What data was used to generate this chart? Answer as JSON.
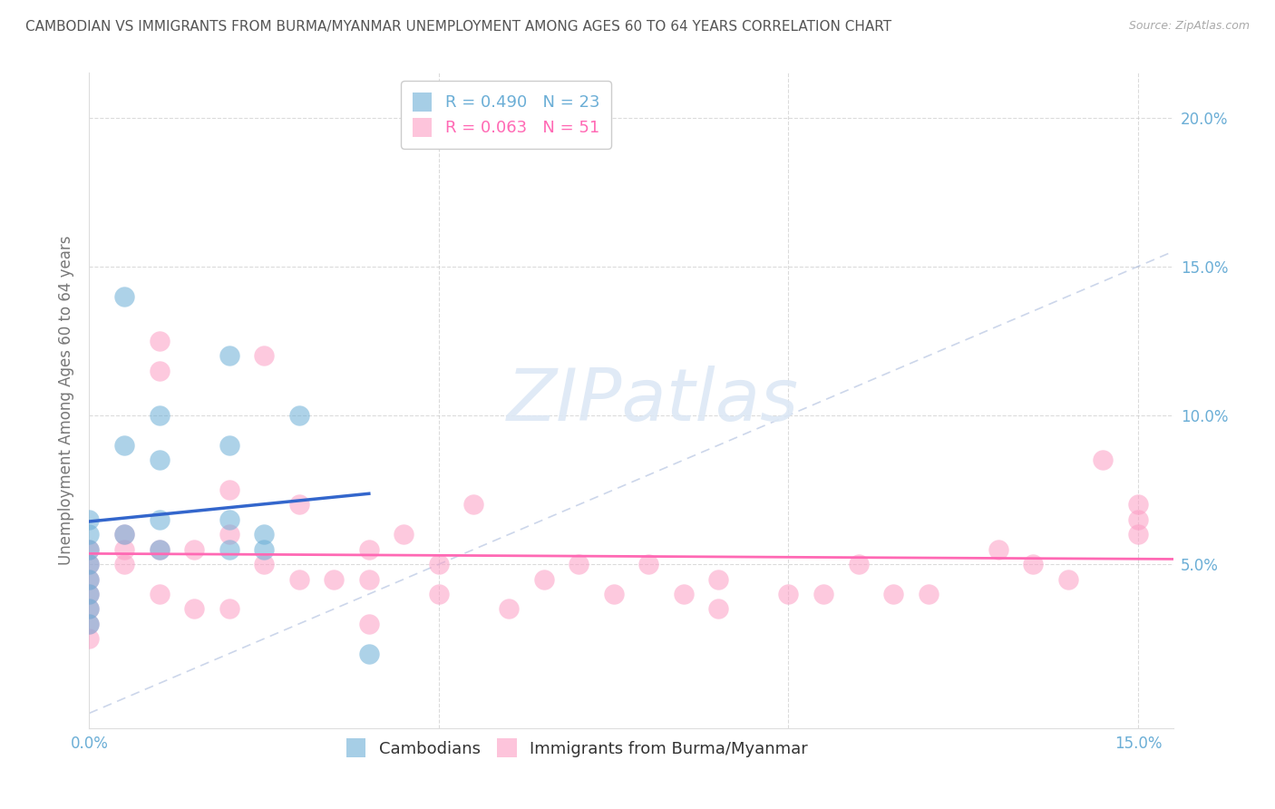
{
  "title": "CAMBODIAN VS IMMIGRANTS FROM BURMA/MYANMAR UNEMPLOYMENT AMONG AGES 60 TO 64 YEARS CORRELATION CHART",
  "source": "Source: ZipAtlas.com",
  "ylabel": "Unemployment Among Ages 60 to 64 years",
  "xlim": [
    0.0,
    0.155
  ],
  "ylim": [
    -0.005,
    0.215
  ],
  "x_ticks": [
    0.0,
    0.05,
    0.1,
    0.15
  ],
  "x_ticklabels": [
    "0.0%",
    "",
    "",
    "15.0%"
  ],
  "y_ticks": [
    0.05,
    0.1,
    0.15,
    0.2
  ],
  "y_ticklabels": [
    "5.0%",
    "10.0%",
    "15.0%",
    "20.0%"
  ],
  "cambodian_color": "#6BAED6",
  "burma_color": "#FC9DC4",
  "line_cambodian_color": "#3366CC",
  "line_burma_color": "#FF69B4",
  "cambodian_R": 0.49,
  "cambodian_N": 23,
  "burma_R": 0.063,
  "burma_N": 51,
  "legend_labels": [
    "Cambodians",
    "Immigrants from Burma/Myanmar"
  ],
  "watermark_text": "ZIPatlas",
  "cambodian_x": [
    0.0,
    0.0,
    0.0,
    0.0,
    0.0,
    0.0,
    0.0,
    0.0,
    0.005,
    0.005,
    0.005,
    0.01,
    0.01,
    0.01,
    0.01,
    0.02,
    0.02,
    0.02,
    0.02,
    0.025,
    0.025,
    0.03,
    0.04
  ],
  "cambodian_y": [
    0.055,
    0.06,
    0.065,
    0.05,
    0.045,
    0.04,
    0.035,
    0.03,
    0.06,
    0.09,
    0.14,
    0.065,
    0.1,
    0.085,
    0.055,
    0.065,
    0.12,
    0.09,
    0.055,
    0.06,
    0.055,
    0.1,
    0.02
  ],
  "burma_x": [
    0.0,
    0.0,
    0.0,
    0.0,
    0.0,
    0.0,
    0.0,
    0.005,
    0.005,
    0.005,
    0.01,
    0.01,
    0.01,
    0.01,
    0.015,
    0.015,
    0.02,
    0.02,
    0.02,
    0.025,
    0.025,
    0.03,
    0.03,
    0.035,
    0.04,
    0.04,
    0.04,
    0.045,
    0.05,
    0.05,
    0.055,
    0.06,
    0.065,
    0.07,
    0.075,
    0.08,
    0.085,
    0.09,
    0.09,
    0.1,
    0.105,
    0.11,
    0.115,
    0.12,
    0.13,
    0.135,
    0.14,
    0.145,
    0.15,
    0.15,
    0.15
  ],
  "burma_y": [
    0.055,
    0.05,
    0.045,
    0.04,
    0.035,
    0.03,
    0.025,
    0.06,
    0.055,
    0.05,
    0.125,
    0.115,
    0.055,
    0.04,
    0.055,
    0.035,
    0.075,
    0.06,
    0.035,
    0.12,
    0.05,
    0.07,
    0.045,
    0.045,
    0.055,
    0.045,
    0.03,
    0.06,
    0.05,
    0.04,
    0.07,
    0.035,
    0.045,
    0.05,
    0.04,
    0.05,
    0.04,
    0.045,
    0.035,
    0.04,
    0.04,
    0.05,
    0.04,
    0.04,
    0.055,
    0.05,
    0.045,
    0.085,
    0.065,
    0.06,
    0.07
  ],
  "background_color": "#ffffff",
  "grid_color": "#cccccc",
  "title_color": "#555555",
  "axis_label_color": "#777777",
  "tick_label_color": "#6BAED6"
}
